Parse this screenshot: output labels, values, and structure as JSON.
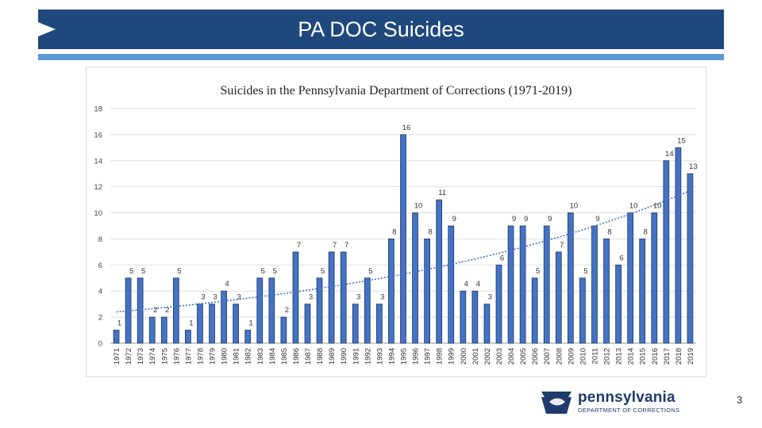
{
  "slide": {
    "title": "PA DOC Suicides",
    "page_number": "3"
  },
  "logo": {
    "name": "pennsylvania",
    "subtitle": "DEPARTMENT OF CORRECTIONS"
  },
  "colors": {
    "title_bar": "#1f497d",
    "accent_rule": "#5b9bd5",
    "bar_fill": "#4472c4",
    "bar_stroke": "#1f3864",
    "trendline": "#4472c4"
  },
  "chart_data": {
    "type": "bar",
    "title": "Suicides in the Pennsylvania Department of Corrections  (1971-2019)",
    "xlabel": "",
    "ylabel": "",
    "ylim": [
      0,
      18
    ],
    "yticks": [
      0,
      2,
      4,
      6,
      8,
      10,
      12,
      14,
      16,
      18
    ],
    "grid": true,
    "legend": "none",
    "categories": [
      "1971",
      "1972",
      "1973",
      "1974",
      "1975",
      "1976",
      "1977",
      "1978",
      "1979",
      "1980",
      "1981",
      "1982",
      "1983",
      "1984",
      "1985",
      "1986",
      "1987",
      "1988",
      "1989",
      "1990",
      "1991",
      "1992",
      "1993",
      "1994",
      "1995",
      "1996",
      "1997",
      "1998",
      "1999",
      "2000",
      "2001",
      "2002",
      "2003",
      "2004",
      "2005",
      "2006",
      "2007",
      "2008",
      "2009",
      "2010",
      "2011",
      "2012",
      "2013",
      "2014",
      "2015",
      "2016",
      "2017",
      "2018",
      "2019"
    ],
    "values": [
      1,
      5,
      5,
      2,
      2,
      5,
      1,
      3,
      3,
      4,
      3,
      1,
      5,
      5,
      2,
      7,
      3,
      5,
      7,
      7,
      3,
      5,
      3,
      8,
      16,
      10,
      8,
      11,
      9,
      4,
      4,
      3,
      6,
      9,
      9,
      5,
      9,
      7,
      10,
      5,
      9,
      8,
      6,
      10,
      8,
      10,
      14,
      15,
      13
    ],
    "trendline": {
      "type": "exponential",
      "start": 2.4,
      "end": 11.7
    }
  }
}
